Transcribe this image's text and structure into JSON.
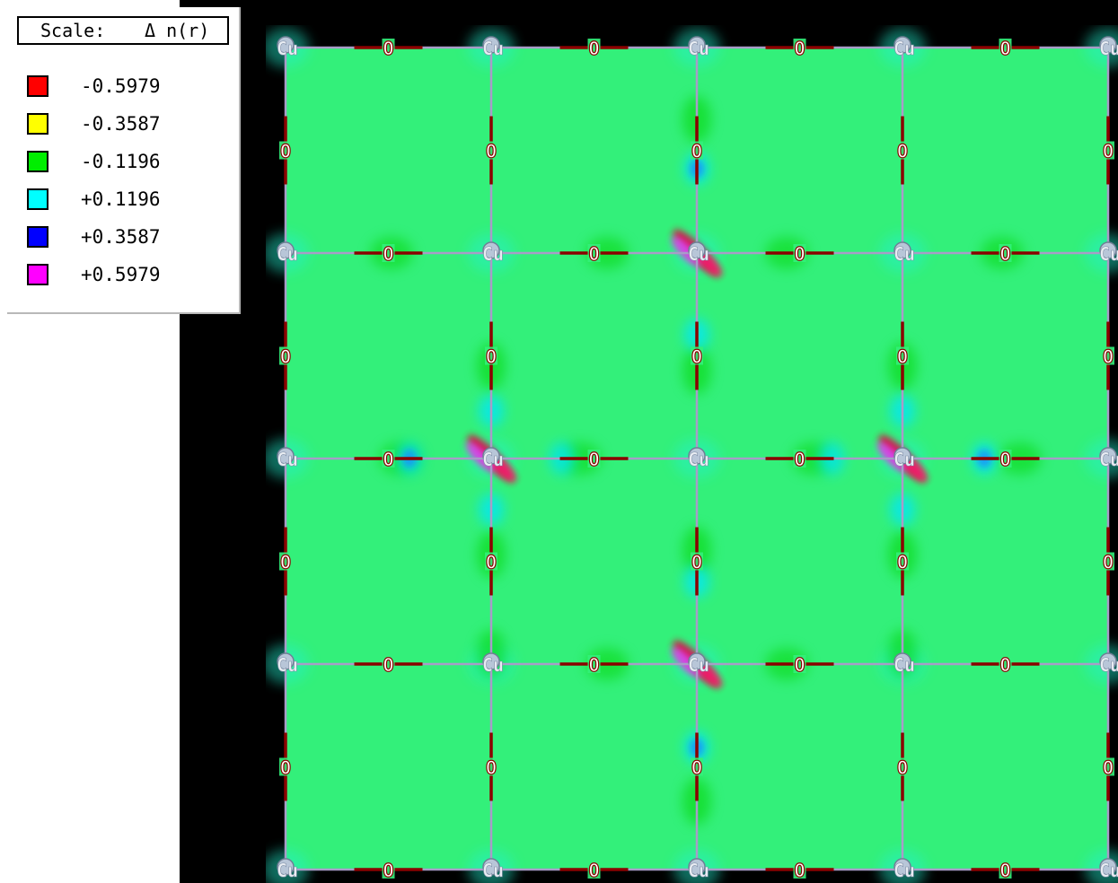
{
  "legend": {
    "title": "Scale:",
    "quantity": "Δ n(r)",
    "entries": [
      {
        "color": "#ff0000",
        "label": "-0.5979"
      },
      {
        "color": "#ffff00",
        "label": "-0.3587"
      },
      {
        "color": "#00ee00",
        "label": "-0.1196"
      },
      {
        "color": "#00ffff",
        "label": "+0.1196"
      },
      {
        "color": "#0000ff",
        "label": "+0.3587"
      },
      {
        "color": "#ff00ff",
        "label": "+0.5979"
      }
    ]
  },
  "map": {
    "background_color": "#33f07a",
    "bond_color": "#a89cc8",
    "oxygen_color": "#8b0000",
    "copper_atom_label": "Cu",
    "oxygen_atom_label": "O"
  }
}
